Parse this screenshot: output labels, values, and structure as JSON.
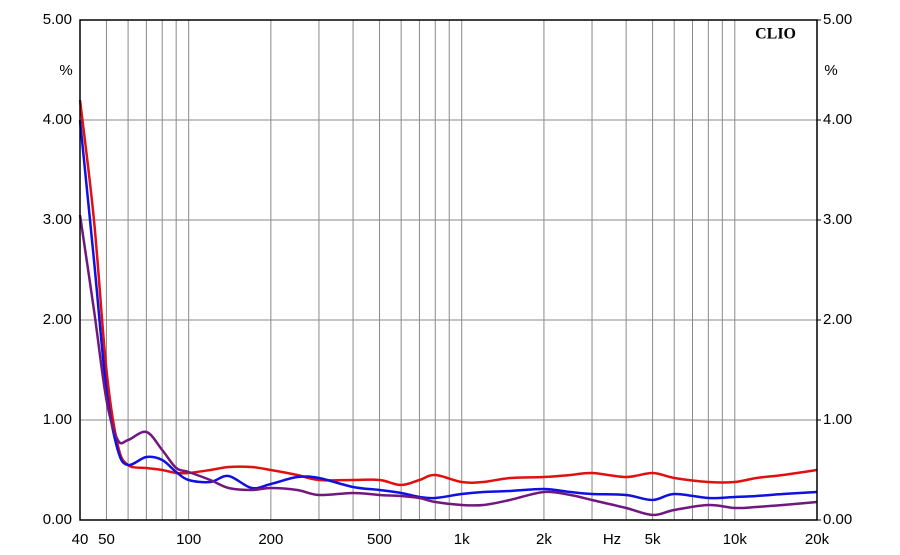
{
  "chart_data": {
    "type": "line",
    "watermark": "CLIO",
    "y_label": "%",
    "y2_label": "%",
    "x_label": "Hz",
    "log_x": true,
    "grid": true,
    "x": [
      40,
      45,
      50,
      55,
      60,
      70,
      80,
      90,
      100,
      120,
      140,
      170,
      200,
      250,
      300,
      400,
      500,
      600,
      700,
      800,
      1000,
      1200,
      1500,
      2000,
      2500,
      3000,
      4000,
      5000,
      6000,
      8000,
      10000,
      12000,
      15000,
      20000
    ],
    "series": [
      {
        "color": "#e01010",
        "values": [
          4.2,
          3.0,
          1.5,
          0.75,
          0.55,
          0.52,
          0.5,
          0.47,
          0.47,
          0.5,
          0.53,
          0.53,
          0.5,
          0.45,
          0.4,
          0.4,
          0.4,
          0.35,
          0.4,
          0.45,
          0.38,
          0.38,
          0.42,
          0.43,
          0.45,
          0.47,
          0.43,
          0.47,
          0.42,
          0.38,
          0.38,
          0.42,
          0.45,
          0.5
        ]
      },
      {
        "color": "#1010e0",
        "values": [
          4.0,
          2.6,
          1.3,
          0.7,
          0.55,
          0.63,
          0.6,
          0.48,
          0.4,
          0.38,
          0.44,
          0.32,
          0.36,
          0.43,
          0.42,
          0.33,
          0.3,
          0.27,
          0.23,
          0.22,
          0.26,
          0.28,
          0.29,
          0.31,
          0.28,
          0.26,
          0.25,
          0.2,
          0.26,
          0.22,
          0.23,
          0.24,
          0.26,
          0.28
        ]
      },
      {
        "color": "#701880",
        "values": [
          3.05,
          2.1,
          1.2,
          0.8,
          0.8,
          0.88,
          0.7,
          0.52,
          0.48,
          0.4,
          0.32,
          0.3,
          0.32,
          0.3,
          0.25,
          0.27,
          0.25,
          0.24,
          0.22,
          0.18,
          0.15,
          0.15,
          0.2,
          0.28,
          0.25,
          0.2,
          0.12,
          0.05,
          0.1,
          0.15,
          0.12,
          0.13,
          0.15,
          0.18
        ]
      }
    ],
    "xlim": [
      40,
      20000
    ],
    "xticks": [
      40,
      50,
      100,
      200,
      500,
      {
        "value": 1000,
        "label": "1k"
      },
      {
        "value": 2000,
        "label": "2k"
      },
      {
        "value": 5000,
        "label": "5k"
      },
      {
        "value": 10000,
        "label": "10k"
      },
      {
        "value": 20000,
        "label": "20k"
      }
    ],
    "x_minor_ticks": [
      60,
      70,
      80,
      90,
      300,
      400,
      600,
      700,
      800,
      900,
      3000,
      4000,
      6000,
      7000,
      8000,
      9000
    ],
    "ylim": [
      0,
      5
    ],
    "yticks": [
      {
        "value": 0,
        "label": "0.00"
      },
      {
        "value": 1,
        "label": "1.00"
      },
      {
        "value": 2,
        "label": "2.00"
      },
      {
        "value": 3,
        "label": "3.00"
      },
      {
        "value": 4,
        "label": "4.00"
      },
      {
        "value": 5,
        "label": "5.00"
      }
    ],
    "y2lim": [
      0,
      5
    ],
    "y2ticks": [
      {
        "value": 0,
        "label": "0.00"
      },
      {
        "value": 1,
        "label": "1.00"
      },
      {
        "value": 2,
        "label": "2.00"
      },
      {
        "value": 3,
        "label": "3.00"
      },
      {
        "value": 4,
        "label": "4.00"
      },
      {
        "value": 5,
        "label": "5.00"
      }
    ]
  }
}
